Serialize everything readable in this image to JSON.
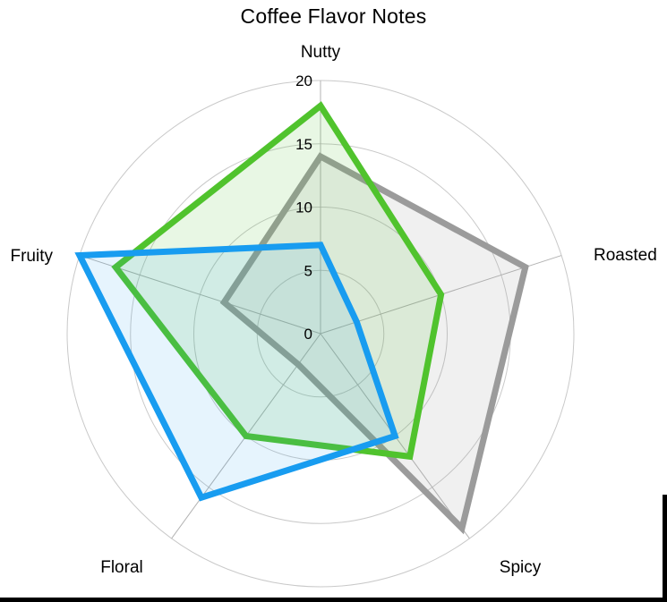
{
  "chart_data": {
    "type": "radar",
    "title": "Coffee Flavor Notes",
    "categories": [
      "Nutty",
      "Roasted",
      "Spicy",
      "Floral",
      "Fruity"
    ],
    "axis_direction": "clockwise-from-top",
    "ticks": [
      0,
      5,
      10,
      15,
      20
    ],
    "rmin": 0,
    "rmax": 20,
    "grid": true,
    "legend_position": "none",
    "grid_color": "#C9C9C9",
    "spoke_color": "#B3B3B3",
    "text_color": "#000000",
    "series": [
      {
        "name": "gray-series",
        "color": "#9B9B9B",
        "fill_opacity": 0.15,
        "values": [
          14,
          17,
          19,
          3,
          8
        ]
      },
      {
        "name": "green-series",
        "color": "#50C32D",
        "fill_opacity": 0.13,
        "values": [
          18,
          10,
          12,
          10,
          17
        ]
      },
      {
        "name": "blue-series",
        "color": "#189CF0",
        "fill_opacity": 0.11,
        "values": [
          7,
          3,
          10,
          16,
          20
        ]
      }
    ]
  }
}
